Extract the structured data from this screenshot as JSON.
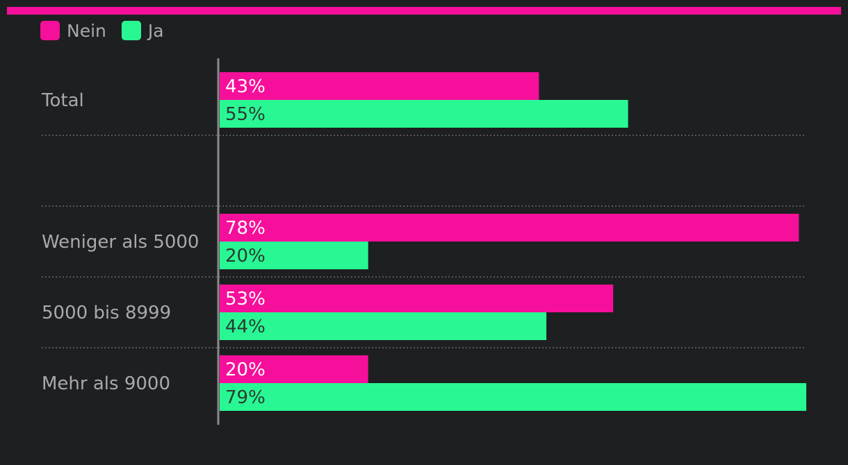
{
  "colors": {
    "background": "#1e1f21",
    "accent_bar": "#f50f9a",
    "nein": "#f50f9a",
    "ja": "#29f793",
    "axis": "#8a8a8c",
    "separator": "#6b6b6e",
    "label_on_pink": "#ffffff",
    "label_on_green": "#2a3a32"
  },
  "chart_data": {
    "type": "bar",
    "orientation": "horizontal",
    "categories": [
      "Total",
      "",
      "Weniger als 5000",
      "5000 bis 8999",
      "Mehr als 9000"
    ],
    "series": [
      {
        "name": "Nein",
        "values": [
          43,
          null,
          78,
          53,
          20
        ]
      },
      {
        "name": "Ja",
        "values": [
          55,
          null,
          20,
          44,
          79
        ]
      }
    ],
    "value_format": "{v}%",
    "xlim": [
      0,
      79
    ],
    "legend_position": "top-left",
    "grid": false,
    "title": "",
    "xlabel": "",
    "ylabel": ""
  }
}
